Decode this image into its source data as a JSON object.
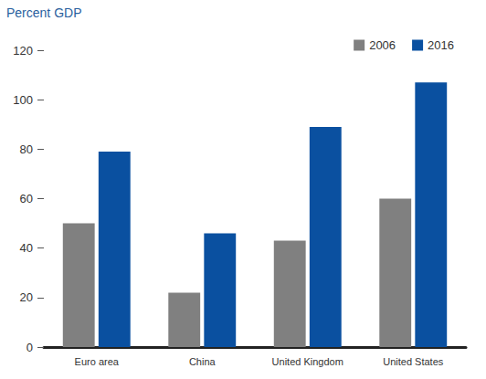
{
  "chart_data": {
    "type": "bar",
    "ylabel": "Percent GDP",
    "categories": [
      "Euro area",
      "China",
      "United Kingdom",
      "United States"
    ],
    "series": [
      {
        "name": "2006",
        "color": "#808080",
        "values": [
          50,
          22,
          43,
          60
        ]
      },
      {
        "name": "2016",
        "color": "#0a50a0",
        "values": [
          79,
          46,
          89,
          107
        ]
      }
    ],
    "ylim": [
      0,
      120
    ],
    "yticks": [
      0,
      20,
      40,
      60,
      80,
      100,
      120
    ],
    "grid": false,
    "legend": "top right"
  }
}
